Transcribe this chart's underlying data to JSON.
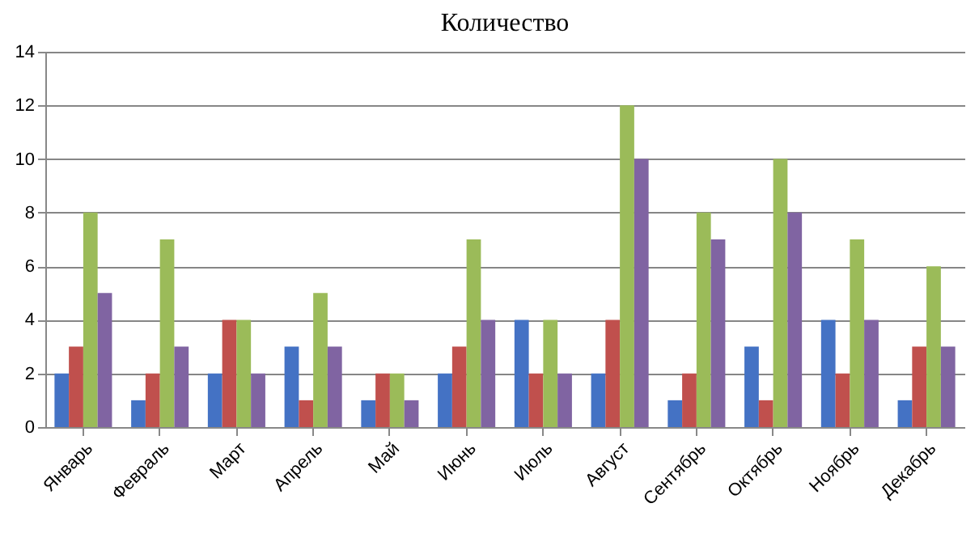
{
  "chart_data": {
    "type": "bar",
    "title": "Количество",
    "categories": [
      "Январь",
      "Февраль",
      "Март",
      "Апрель",
      "Май",
      "Июнь",
      "Июль",
      "Август",
      "Сентябрь",
      "Октябрь",
      "Ноябрь",
      "Декабрь"
    ],
    "series": [
      {
        "color": "#4472c4",
        "values": [
          2,
          1,
          2,
          3,
          1,
          2,
          4,
          2,
          1,
          3,
          4,
          1
        ]
      },
      {
        "color": "#c0504d",
        "values": [
          3,
          2,
          4,
          1,
          2,
          3,
          2,
          4,
          2,
          1,
          2,
          3
        ]
      },
      {
        "color": "#9bbb59",
        "values": [
          8,
          7,
          4,
          5,
          2,
          7,
          4,
          12,
          8,
          10,
          7,
          6
        ]
      },
      {
        "color": "#8064a2",
        "values": [
          5,
          3,
          2,
          3,
          1,
          4,
          2,
          10,
          7,
          8,
          4,
          3
        ]
      }
    ],
    "ylim": [
      0,
      14
    ],
    "yticks": [
      0,
      2,
      4,
      6,
      8,
      10,
      12,
      14
    ],
    "grid": "y",
    "legend": false
  }
}
